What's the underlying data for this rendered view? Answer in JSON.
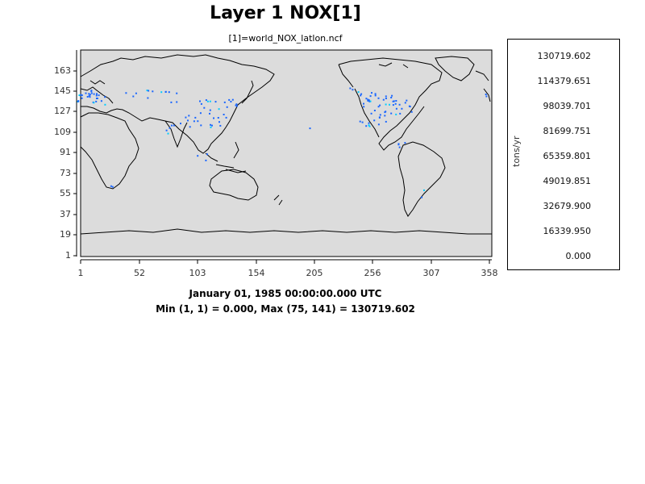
{
  "header": {
    "title": "Layer 1 NOX[1]",
    "subtitle": "[1]=world_NOX_latlon.ncf"
  },
  "footer": {
    "timestamp": "January 01, 1985 00:00:00.000 UTC",
    "minmax": "Min (1, 1) = 0.000, Max (75, 141) = 130719.602"
  },
  "axes": {
    "y_ticks": [
      "163",
      "145",
      "127",
      "109",
      "91",
      "73",
      "55",
      "37",
      "19",
      "1"
    ],
    "x_ticks": [
      "1",
      "52",
      "103",
      "154",
      "205",
      "256",
      "307",
      "358"
    ]
  },
  "legend": {
    "units": "tons/yr",
    "labels": [
      "130719.602",
      "114379.651",
      "98039.701",
      "81699.751",
      "65359.801",
      "49019.851",
      "32679.900",
      "16339.950",
      "0.000"
    ],
    "colors": [
      "#ff0000",
      "#ff9900",
      "#ccff00",
      "#33dd00",
      "#00ffcc",
      "#0099ff",
      "#0055ff",
      "#dcdcdc"
    ]
  },
  "map": {
    "background": "#dcdcdc",
    "coastline_color": "#000000",
    "emission_color": "#1a66ff"
  }
}
